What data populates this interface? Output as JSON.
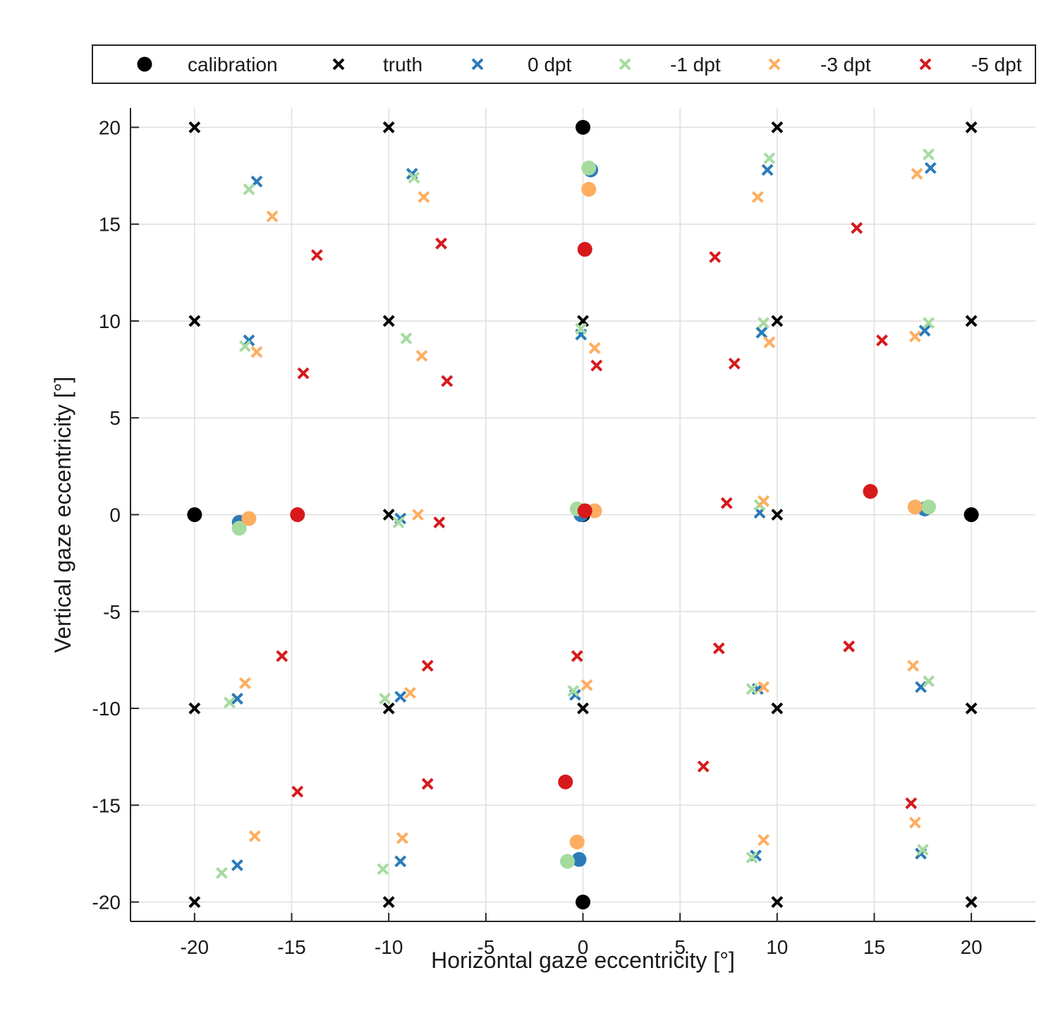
{
  "chart_data": {
    "type": "scatter",
    "title": "",
    "xlabel": "Horizontal gaze eccentricity [°]",
    "ylabel": "Vertical gaze eccentricity [°]",
    "xlim": [
      -23.3,
      23.3
    ],
    "ylim": [
      -21,
      21
    ],
    "xticks": [
      -20,
      -15,
      -10,
      -5,
      0,
      5,
      10,
      15,
      20
    ],
    "yticks": [
      -20,
      -15,
      -10,
      -5,
      0,
      5,
      10,
      15,
      20
    ],
    "xtick_labels": [
      "-20",
      "-15",
      "-10",
      "-5",
      "0",
      "5",
      "10",
      "15",
      "20"
    ],
    "ytick_labels": [
      "-20",
      "-15",
      "-10",
      "-5",
      "0",
      "5",
      "10",
      "15",
      "20"
    ],
    "grid": true,
    "legend_position": "top, outside plot, horizontal",
    "legend": [
      {
        "label": "calibration",
        "marker": "dot",
        "color": "#000000"
      },
      {
        "label": "truth",
        "marker": "x",
        "color": "#000000"
      },
      {
        "label": "0 dpt",
        "marker": "x",
        "color": "#2b7bba"
      },
      {
        "label": "-1 dpt",
        "marker": "x",
        "color": "#a6dba0"
      },
      {
        "label": "-3 dpt",
        "marker": "x",
        "color": "#fdae61"
      },
      {
        "label": "-5 dpt",
        "marker": "x",
        "color": "#d7191c"
      }
    ],
    "series": [
      {
        "name": "truth",
        "marker": "x",
        "color": "#000000",
        "points": [
          [
            -20,
            20
          ],
          [
            -10,
            20
          ],
          [
            10,
            20
          ],
          [
            20,
            20
          ],
          [
            -20,
            10
          ],
          [
            -10,
            10
          ],
          [
            0,
            10
          ],
          [
            10,
            10
          ],
          [
            20,
            10
          ],
          [
            -10,
            0
          ],
          [
            10,
            0
          ],
          [
            -20,
            -10
          ],
          [
            -10,
            -10
          ],
          [
            0,
            -10
          ],
          [
            10,
            -10
          ],
          [
            20,
            -10
          ],
          [
            -20,
            -20
          ],
          [
            -10,
            -20
          ],
          [
            10,
            -20
          ],
          [
            20,
            -20
          ]
        ]
      },
      {
        "name": "0 dpt",
        "marker": "x",
        "color": "#2b7bba",
        "points": [
          [
            -16.8,
            17.2
          ],
          [
            -8.8,
            17.6
          ],
          [
            9.5,
            17.8
          ],
          [
            17.9,
            17.9
          ],
          [
            -17.2,
            9.0
          ],
          [
            -0.1,
            9.3
          ],
          [
            9.2,
            9.4
          ],
          [
            17.6,
            9.5
          ],
          [
            -9.4,
            -0.2
          ],
          [
            9.1,
            0.1
          ],
          [
            -17.8,
            -9.5
          ],
          [
            -9.4,
            -9.4
          ],
          [
            -0.4,
            -9.3
          ],
          [
            9.0,
            -9.0
          ],
          [
            17.4,
            -8.9
          ],
          [
            -17.8,
            -18.1
          ],
          [
            -9.4,
            -17.9
          ],
          [
            8.9,
            -17.6
          ],
          [
            17.4,
            -17.5
          ]
        ]
      },
      {
        "name": "-1 dpt",
        "marker": "x",
        "color": "#a6dba0",
        "points": [
          [
            -17.2,
            16.8
          ],
          [
            -8.7,
            17.4
          ],
          [
            9.6,
            18.4
          ],
          [
            17.8,
            18.6
          ],
          [
            -17.4,
            8.7
          ],
          [
            -9.1,
            9.1
          ],
          [
            -0.1,
            9.6
          ],
          [
            9.3,
            9.9
          ],
          [
            17.8,
            9.9
          ],
          [
            -9.5,
            -0.4
          ],
          [
            9.1,
            0.5
          ],
          [
            -18.2,
            -9.7
          ],
          [
            -10.2,
            -9.5
          ],
          [
            -0.5,
            -9.1
          ],
          [
            8.7,
            -9.0
          ],
          [
            17.8,
            -8.6
          ],
          [
            -18.6,
            -18.5
          ],
          [
            -10.3,
            -18.3
          ],
          [
            8.7,
            -17.7
          ],
          [
            17.5,
            -17.3
          ]
        ]
      },
      {
        "name": "-3 dpt",
        "marker": "x",
        "color": "#fdae61",
        "points": [
          [
            -16.0,
            15.4
          ],
          [
            -8.2,
            16.4
          ],
          [
            9.0,
            16.4
          ],
          [
            17.2,
            17.6
          ],
          [
            -16.8,
            8.4
          ],
          [
            -8.3,
            8.2
          ],
          [
            0.6,
            8.6
          ],
          [
            9.6,
            8.9
          ],
          [
            17.1,
            9.2
          ],
          [
            -8.5,
            0.0
          ],
          [
            9.3,
            0.7
          ],
          [
            -17.4,
            -8.7
          ],
          [
            -8.9,
            -9.2
          ],
          [
            0.2,
            -8.8
          ],
          [
            9.3,
            -8.9
          ],
          [
            17.0,
            -7.8
          ],
          [
            -16.9,
            -16.6
          ],
          [
            -9.3,
            -16.7
          ],
          [
            9.3,
            -16.8
          ],
          [
            17.1,
            -15.9
          ]
        ]
      },
      {
        "name": "-5 dpt",
        "marker": "x",
        "color": "#d7191c",
        "points": [
          [
            -13.7,
            13.4
          ],
          [
            -7.3,
            14.0
          ],
          [
            6.8,
            13.3
          ],
          [
            14.1,
            14.8
          ],
          [
            -14.4,
            7.3
          ],
          [
            -7.0,
            6.9
          ],
          [
            0.7,
            7.7
          ],
          [
            7.8,
            7.8
          ],
          [
            15.4,
            9.0
          ],
          [
            -7.4,
            -0.4
          ],
          [
            7.4,
            0.6
          ],
          [
            -15.5,
            -7.3
          ],
          [
            -8.0,
            -7.8
          ],
          [
            -0.3,
            -7.3
          ],
          [
            7.0,
            -6.9
          ],
          [
            13.7,
            -6.8
          ],
          [
            -14.7,
            -14.3
          ],
          [
            -8.0,
            -13.9
          ],
          [
            6.2,
            -13.0
          ],
          [
            16.9,
            -14.9
          ]
        ]
      },
      {
        "name": "calibration",
        "marker": "dot",
        "color": "#000000",
        "points": [
          [
            0,
            20
          ],
          [
            -20,
            0
          ],
          [
            0,
            0
          ],
          [
            20,
            0
          ],
          [
            0,
            -20
          ]
        ]
      },
      {
        "name": "0 dpt calibration",
        "marker": "dot",
        "color": "#2b7bba",
        "points": [
          [
            0.4,
            17.8
          ],
          [
            -17.7,
            -0.4
          ],
          [
            -0.1,
            0.0
          ],
          [
            17.6,
            0.3
          ],
          [
            -0.2,
            -17.8
          ]
        ]
      },
      {
        "name": "-1 dpt calibration",
        "marker": "dot",
        "color": "#a6dba0",
        "points": [
          [
            0.3,
            17.9
          ],
          [
            -17.7,
            -0.7
          ],
          [
            -0.3,
            0.3
          ],
          [
            17.8,
            0.4
          ],
          [
            -0.8,
            -17.9
          ]
        ]
      },
      {
        "name": "-3 dpt calibration",
        "marker": "dot",
        "color": "#fdae61",
        "points": [
          [
            0.3,
            16.8
          ],
          [
            -17.2,
            -0.2
          ],
          [
            0.6,
            0.2
          ],
          [
            17.1,
            0.4
          ],
          [
            -0.3,
            -16.9
          ]
        ]
      },
      {
        "name": "-5 dpt calibration",
        "marker": "dot",
        "color": "#d7191c",
        "points": [
          [
            0.1,
            13.7
          ],
          [
            -14.7,
            0.0
          ],
          [
            0.1,
            0.2
          ],
          [
            14.8,
            1.2
          ],
          [
            -0.9,
            -13.8
          ]
        ]
      }
    ]
  }
}
